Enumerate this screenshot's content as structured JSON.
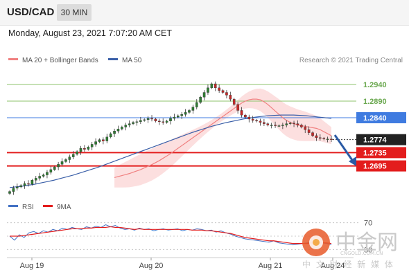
{
  "header": {
    "symbol": "USD/CAD",
    "timeframe": "30 MIN",
    "datetime": "Monday, August 23, 2021 7:07:20 AM CET"
  },
  "legend": {
    "ma20_label": "MA 20 + Bollinger Bands",
    "ma50_label": "MA 50",
    "copyright": "Research © 2021 Trading Central"
  },
  "rsi_legend": {
    "rsi_label": "RSI",
    "ma_label": "9MA"
  },
  "watermark": {
    "text": "中金网",
    "subtext": "中 文 财 经 新 媒 体",
    "url": "CNGOLD.COM.CN"
  },
  "colors": {
    "ma20": "#f08080",
    "ma50": "#3a5fa8",
    "bollinger_fill": "#fbd4d4",
    "resistance_green": "#8cc36b",
    "pivot_blue": "#3f7be0",
    "support_red": "#e31d1d",
    "arrow": "#2a5aa5",
    "candle_up": "#2e7d32",
    "candle_down": "#c62828",
    "rsi_line": "#4472c4",
    "rsi_ma": "#e31d1d"
  },
  "chart_data": {
    "type": "candlestick",
    "title": "USD/CAD",
    "timeframe": "30 MIN",
    "xlabels": [
      "Aug 19",
      "Aug 20",
      "Aug 21",
      "Aug 24"
    ],
    "ylim": [
      1.2615,
      1.299
    ],
    "levels": [
      {
        "value": 1.294,
        "label": "1.2940",
        "kind": "resistance"
      },
      {
        "value": 1.289,
        "label": "1.2890",
        "kind": "resistance"
      },
      {
        "value": 1.284,
        "label": "1.2840",
        "kind": "pivot"
      },
      {
        "value": 1.2774,
        "label": "1.2774",
        "kind": "last"
      },
      {
        "value": 1.2735,
        "label": "1.2735",
        "kind": "support"
      },
      {
        "value": 1.2695,
        "label": "1.2695",
        "kind": "support"
      }
    ],
    "close": [
      1.2618,
      1.2628,
      1.2632,
      1.2636,
      1.2642,
      1.264,
      1.2652,
      1.2658,
      1.2664,
      1.2668,
      1.2676,
      1.2684,
      1.2692,
      1.27,
      1.2708,
      1.2714,
      1.2722,
      1.273,
      1.2738,
      1.2748,
      1.2745,
      1.2752,
      1.276,
      1.2768,
      1.2774,
      1.277,
      1.2782,
      1.2792,
      1.28,
      1.2806,
      1.2812,
      1.2818,
      1.2822,
      1.2826,
      1.2828,
      1.2832,
      1.2834,
      1.2838,
      1.2836,
      1.283,
      1.2828,
      1.2826,
      1.283,
      1.2838,
      1.2842,
      1.2846,
      1.285,
      1.2856,
      1.2862,
      1.2872,
      1.2886,
      1.2902,
      1.2916,
      1.293,
      1.2942,
      1.293,
      1.2922,
      1.2916,
      1.2908,
      1.2896,
      1.288,
      1.2862,
      1.2848,
      1.2842,
      1.2836,
      1.2832,
      1.283,
      1.2826,
      1.2822,
      1.2818,
      1.2818,
      1.2816,
      1.2816,
      1.2818,
      1.2822,
      1.2824,
      1.2822,
      1.2818,
      1.2812,
      1.2804,
      1.2795,
      1.2786,
      1.278,
      1.2778,
      1.2776,
      1.2776,
      1.2774
    ],
    "ma20": [
      1.266,
      1.2663,
      1.2666,
      1.2669,
      1.2672,
      1.2676,
      1.268,
      1.2684,
      1.2689,
      1.2694,
      1.2699,
      1.2705,
      1.2711,
      1.2718,
      1.2725,
      1.2732,
      1.274,
      1.2748,
      1.2756,
      1.2764,
      1.2772,
      1.278,
      1.2788,
      1.2796,
      1.2804,
      1.2812,
      1.282,
      1.2828,
      1.2836,
      1.2844,
      1.2852,
      1.286,
      1.2868,
      1.2876,
      1.2884,
      1.289,
      1.2894,
      1.2896,
      1.2896,
      1.2894,
      1.2888,
      1.288,
      1.287,
      1.286,
      1.285,
      1.284,
      1.2832,
      1.2826,
      1.2822,
      1.2818,
      1.2816,
      1.2814,
      1.2812,
      1.281,
      1.2808,
      1.2804,
      1.2798,
      1.2792,
      1.2786
    ],
    "ma50_start_index": 0,
    "ma50": [
      1.263,
      1.2632,
      1.2634,
      1.2637,
      1.264,
      1.2644,
      1.2648,
      1.2652,
      1.2657,
      1.2662,
      1.2667,
      1.2673,
      1.2679,
      1.2685,
      1.2691,
      1.2698,
      1.2705,
      1.2712,
      1.2719,
      1.2726,
      1.2733,
      1.274,
      1.2747,
      1.2754,
      1.2761,
      1.2768,
      1.2775,
      1.2782,
      1.2789,
      1.2796,
      1.2802,
      1.2808,
      1.2814,
      1.2819,
      1.2824,
      1.2828,
      1.2832,
      1.2836,
      1.2839,
      1.2842,
      1.2844,
      1.2846,
      1.2847,
      1.2848,
      1.2848,
      1.2848,
      1.2847,
      1.2846,
      1.2844,
      1.2842,
      1.284,
      1.2838
    ],
    "rsi": {
      "level_labels": [
        "70",
        "30"
      ],
      "levels": [
        70,
        50,
        30
      ],
      "rsi": [
        50,
        44,
        52,
        48,
        55,
        57,
        54,
        58,
        56,
        60,
        58,
        62,
        60,
        63,
        61,
        60,
        64,
        62,
        65,
        63,
        67,
        64,
        66,
        62,
        60,
        61,
        59,
        62,
        60,
        61,
        58,
        60,
        61,
        59,
        60,
        61,
        58,
        60,
        59,
        61,
        60,
        58,
        59,
        56,
        58,
        55,
        53,
        50,
        48,
        46,
        45,
        44,
        43,
        42,
        41,
        43,
        40,
        39,
        38,
        37,
        38,
        39,
        40,
        41,
        42,
        40,
        39,
        37
      ],
      "ma": [
        50,
        50,
        50,
        51,
        52,
        53,
        54,
        55,
        56,
        57,
        58,
        59,
        60,
        61,
        61,
        61,
        62,
        62,
        63,
        63,
        63,
        64,
        63,
        63,
        62,
        61,
        60,
        61,
        60,
        60,
        60,
        60,
        60,
        60,
        60,
        60,
        60,
        60,
        59,
        59,
        59,
        58,
        58,
        57,
        56,
        55,
        54,
        52,
        50,
        48,
        47,
        46,
        45,
        44,
        43,
        43,
        42,
        41,
        40,
        39,
        39,
        39,
        39,
        40,
        40,
        40,
        40,
        39
      ]
    }
  }
}
